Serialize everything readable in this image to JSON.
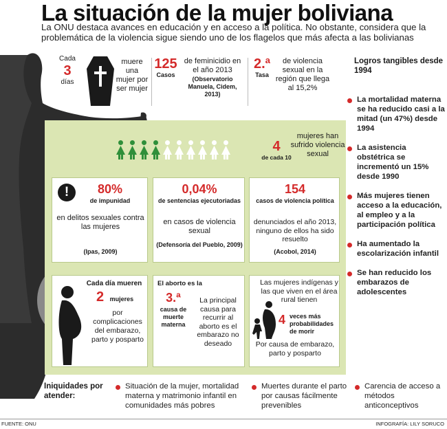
{
  "header": {
    "title": "La situación de la mujer boliviana",
    "subtitle": "La ONU destaca avances en educación y en acceso a la política. No obstante, considera que la problemática de la violencia sigue siendo uno de los flagelos que más afecta a las bolivianas"
  },
  "stats_row": {
    "cada": "Cada",
    "days_num": "3",
    "days_label": "días",
    "dies_text": "muere una mujer por ser mujer",
    "femicide_num": "125",
    "femicide_label": "Casos",
    "femicide_text": "de feminicidio en el año 2013",
    "femicide_source": "(Observatorio Manuela, Cidem, 2013)",
    "rate_num": "2.ª",
    "rate_label": "Tasa",
    "rate_text": "de violencia sexual en la región que llega al 15,2%"
  },
  "achievements": {
    "title": "Logros tangibles desde 1994",
    "items": [
      "La mortalidad materna se ha reducido casi a la mitad (un 47%) desde 1994",
      "La asistencia obstétrica se incrementó un 15% desde 1990",
      "Más mujeres tienen acceso a la educación, al empleo y a la participación política",
      "Ha aumentado la escolarización infantil",
      "Se han reducido los embarazos de adolescentes"
    ]
  },
  "violence": {
    "num": "4",
    "of_ten": "de cada 10",
    "text": "mujeres han sufrido violencia sexual",
    "green_count": 4,
    "white_count": 6
  },
  "boxes": {
    "impunity": {
      "num": "80%",
      "label": "de impunidad",
      "text": "en delitos sexuales contra las mujeres",
      "source": "(Ipas, 2009)"
    },
    "sentences": {
      "num": "0,04%",
      "label": "de sentencias ejecutoriadas",
      "text": "en casos de violencia sexual",
      "source": "(Defensoría del Pueblo, 2009)"
    },
    "political": {
      "num": "154",
      "label": "casos de violencia política",
      "text": "denunciados el año 2013, ninguno de ellos ha sido resuelto",
      "source": "(Acobol, 2014)"
    },
    "maternal": {
      "intro": "Cada día mueren",
      "num": "2",
      "label": "mujeres",
      "text": "por complicaciones del embarazo, parto y posparto"
    },
    "abortion": {
      "intro": "El aborto es la",
      "num": "3.ª",
      "label": "causa de muerte materna",
      "text": "La principal causa para recurrir al aborto es el embarazo no deseado"
    },
    "indigenous": {
      "intro": "Las mujeres indígenas y las que viven en el área rural tienen",
      "num": "4",
      "label": "veces más probabilidades de morir",
      "text": "Por causa de embarazo, parto y posparto"
    }
  },
  "inequalities": {
    "title": "Iniquidades por atender:",
    "items": [
      "Situación de la mujer, mortalidad materna y matrimonio infantil en comunidades más pobres",
      "Muertes durante el parto por causas fácilmente prevenibles",
      "Carencia de acceso a métodos anticonceptivos"
    ]
  },
  "footer": {
    "source": "FUENTE: ONU",
    "credit": "INFOGRAFÍA:  LILY SORUCO"
  },
  "colors": {
    "accent_red": "#d42a2a",
    "panel_green": "#dbe6b3",
    "figure_green": "#2f8f3a",
    "silhouette": "#2c2c2c"
  }
}
